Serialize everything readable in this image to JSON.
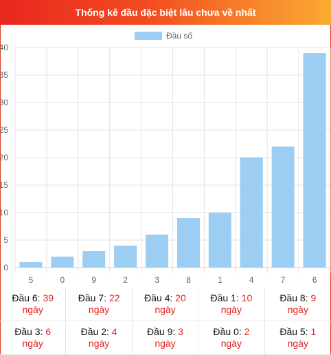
{
  "header": {
    "title": "Thống kê đầu đặc biệt lâu chưa về nhất"
  },
  "chart_data": {
    "type": "bar",
    "legend": {
      "label": "Đầu số",
      "placement": "top-center"
    },
    "categories": [
      "5",
      "0",
      "9",
      "2",
      "3",
      "8",
      "1",
      "4",
      "7",
      "6"
    ],
    "values": [
      1,
      2,
      3,
      4,
      6,
      9,
      10,
      20,
      22,
      39
    ],
    "ylim": [
      0,
      40
    ],
    "yticks": [
      0,
      5,
      10,
      15,
      20,
      25,
      30,
      35,
      40
    ],
    "grid": true,
    "bar_color": "#9ccdf3"
  },
  "stats": {
    "unit": "ngày",
    "items": [
      {
        "label": "Đầu 6: ",
        "value": "39"
      },
      {
        "label": "Đầu 7: ",
        "value": "22"
      },
      {
        "label": "Đầu 4: ",
        "value": "20"
      },
      {
        "label": "Đầu 1: ",
        "value": "10"
      },
      {
        "label": "Đầu 8: ",
        "value": "9"
      },
      {
        "label": "Đầu 3: ",
        "value": "6"
      },
      {
        "label": "Đầu 2: ",
        "value": "4"
      },
      {
        "label": "Đầu 9: ",
        "value": "3"
      },
      {
        "label": "Đầu 0: ",
        "value": "2"
      },
      {
        "label": "Đầu 5: ",
        "value": "1"
      }
    ]
  }
}
